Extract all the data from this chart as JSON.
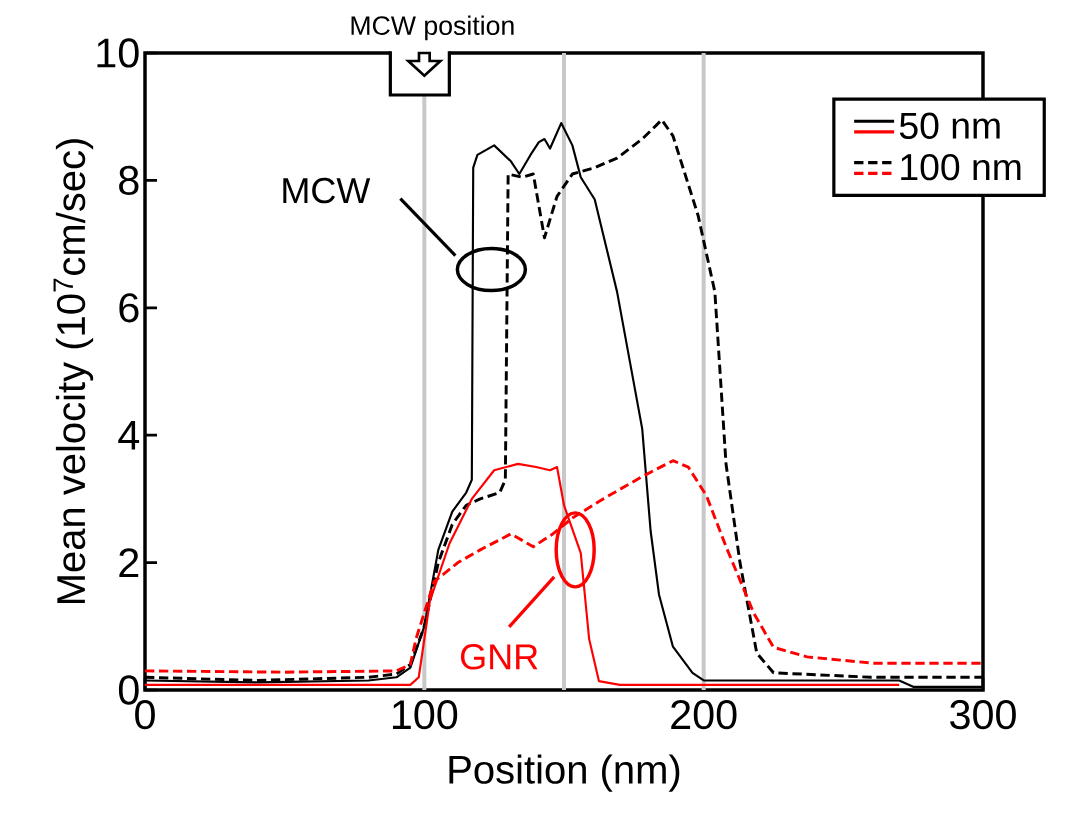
{
  "chart_data": {
    "type": "line",
    "xlabel": "Position (nm)",
    "ylabel": "Mean velocity (10$^{7}$cm/sec)",
    "xlim": [
      0,
      300
    ],
    "ylim": [
      0,
      10
    ],
    "xticks": [
      0,
      100,
      200,
      300
    ],
    "yticks": [
      0,
      2,
      4,
      6,
      8,
      10
    ],
    "legend": "top right",
    "series": [
      {
        "name": "50 nm",
        "color": "#000000",
        "line_style": "solid",
        "x": [
          0,
          40,
          80,
          90,
          95,
          100,
          105,
          110,
          115,
          117,
          117.5,
          119,
          125,
          131,
          134,
          138,
          141,
          143,
          145,
          149,
          153,
          156,
          161,
          169,
          178,
          181,
          184,
          189,
          196,
          200,
          240,
          270,
          275,
          300
        ],
        "values": [
          0.15,
          0.12,
          0.15,
          0.2,
          0.35,
          1.0,
          2.2,
          2.8,
          3.1,
          3.3,
          8.2,
          8.4,
          8.55,
          8.3,
          8.1,
          8.4,
          8.6,
          8.65,
          8.5,
          8.9,
          8.55,
          8.05,
          7.7,
          6.25,
          4.1,
          2.5,
          1.5,
          0.68,
          0.27,
          0.15,
          0.15,
          0.15,
          0.05,
          0.05
        ]
      },
      {
        "name": "100 nm",
        "color": "#000000",
        "line_style": "dashed",
        "x": [
          0,
          40,
          80,
          90,
          95,
          100,
          105,
          110,
          115,
          120,
          127,
          129,
          130,
          135,
          139,
          143,
          147.5,
          153,
          161,
          169,
          178,
          185,
          189,
          198,
          204,
          208,
          213,
          219,
          225,
          260,
          300
        ],
        "values": [
          0.2,
          0.15,
          0.2,
          0.25,
          0.4,
          1.0,
          2.0,
          2.6,
          2.9,
          3.0,
          3.1,
          3.3,
          8.1,
          8.05,
          8.1,
          7.1,
          7.75,
          8.1,
          8.2,
          8.35,
          8.65,
          8.95,
          8.7,
          7.45,
          6.25,
          3.55,
          2.0,
          0.58,
          0.27,
          0.2,
          0.2
        ]
      },
      {
        "color": "#ff0000",
        "line_style": "solid",
        "x": [
          0,
          95,
          98,
          102,
          109,
          117,
          125,
          133.5,
          140,
          145,
          147.5,
          150,
          156,
          159,
          162.5,
          170,
          270
        ],
        "values": [
          0.08,
          0.08,
          0.2,
          1.4,
          2.3,
          3.0,
          3.45,
          3.55,
          3.5,
          3.45,
          3.5,
          2.9,
          2.15,
          0.8,
          0.14,
          0.08,
          0.08
        ]
      },
      {
        "color": "#ff0000",
        "line_style": "dashed",
        "x": [
          0,
          50,
          90,
          95,
          97,
          103.5,
          112,
          120,
          131,
          139,
          146,
          153,
          164,
          178,
          189,
          194.5,
          201,
          208,
          218,
          225,
          237,
          261,
          300
        ],
        "values": [
          0.3,
          0.28,
          0.3,
          0.4,
          0.8,
          1.7,
          2.0,
          2.2,
          2.45,
          2.25,
          2.45,
          2.7,
          3.0,
          3.35,
          3.6,
          3.5,
          3.05,
          2.25,
          1.2,
          0.67,
          0.52,
          0.42,
          0.42
        ]
      }
    ],
    "ref_lines": [
      {
        "axis": "x",
        "value": 100,
        "color": "#c8c8c8"
      },
      {
        "axis": "x",
        "value": 150,
        "color": "#c8c8c8"
      },
      {
        "axis": "x",
        "value": 200,
        "color": "#c8c8c8"
      }
    ],
    "annotations": [
      "MCW position",
      "MCW",
      "GNR"
    ]
  }
}
